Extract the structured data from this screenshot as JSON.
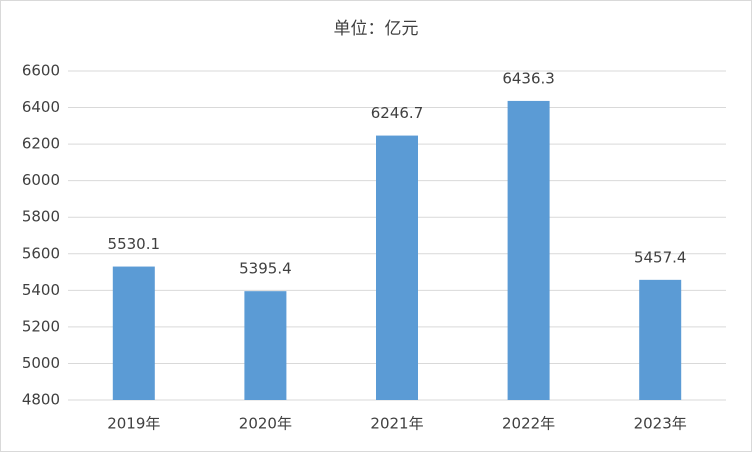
{
  "chart_data": {
    "type": "bar",
    "title": "单位：亿元",
    "categories": [
      "2019年",
      "2020年",
      "2021年",
      "2022年",
      "2023年"
    ],
    "values": [
      5530.1,
      5395.4,
      6246.7,
      6436.3,
      5457.4
    ],
    "color": "#5b9bd5",
    "ylim": [
      4800,
      6600
    ],
    "yticks": [
      4800,
      5000,
      5200,
      5400,
      5600,
      5800,
      6000,
      6200,
      6400,
      6600
    ],
    "grid": true
  }
}
